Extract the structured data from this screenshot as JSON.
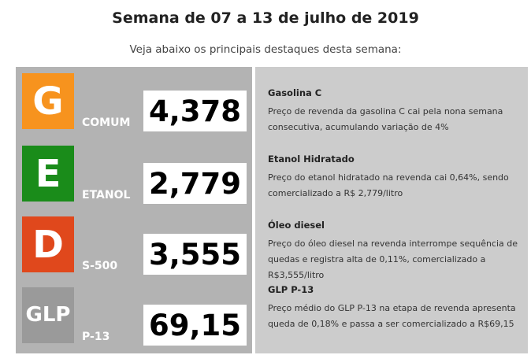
{
  "header": {
    "title": "Semana de 07 a 13 de julho de 2019",
    "subtitle": "Veja abaixo os principais destaques desta semana:"
  },
  "fuels": [
    {
      "letter": "G",
      "label": "COMUM",
      "price": "4,378",
      "color": "#f7931e"
    },
    {
      "letter": "E",
      "label": "ETANOL",
      "price": "2,779",
      "color": "#1a8c1a"
    },
    {
      "letter": "D",
      "label": "S-500",
      "price": "3,555",
      "color": "#e0481c"
    },
    {
      "letter": "GLP",
      "label": "P-13",
      "price": "69,15",
      "color": "#9a9a9a"
    }
  ],
  "highlights": [
    {
      "title": "Gasolina C",
      "description": "Preço de revenda da gasolina C cai pela nona semana consecutiva, acumulando variação de 4%"
    },
    {
      "title": "Etanol Hidratado",
      "description": "Preço do etanol hidratado na revenda cai 0,64%, sendo comercializado a R$ 2,779/litro"
    },
    {
      "title": "Óleo diesel",
      "description": "Preço do óleo diesel na revenda interrompe sequência de quedas e registra alta de 0,11%, comercializado a R$3,555/litro"
    },
    {
      "title": "GLP P-13",
      "description": "Preço médio do GLP P-13 na etapa de revenda apresenta queda de 0,18% e passa a ser comercializado a R$69,15"
    }
  ]
}
